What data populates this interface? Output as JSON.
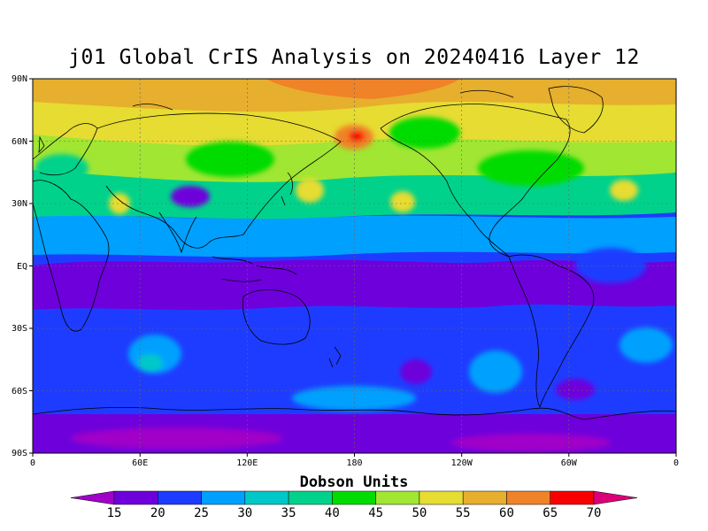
{
  "title": "j01 Global CrIS Analysis on 20240416 Layer 12",
  "map": {
    "lat_labels": [
      "90N",
      "60N",
      "30N",
      "EQ",
      "30S",
      "60S",
      "90S"
    ],
    "lon_labels": [
      "0",
      "60E",
      "120E",
      "180",
      "120W",
      "60W",
      "0"
    ],
    "grid": "dashed"
  },
  "colorbar": {
    "title": "Dobson Units",
    "labels": [
      "15",
      "20",
      "25",
      "30",
      "35",
      "40",
      "45",
      "50",
      "55",
      "60",
      "65",
      "70"
    ],
    "colors": [
      "#a000c8",
      "#6e00dc",
      "#1e3cff",
      "#00a0ff",
      "#00c8c8",
      "#00d28c",
      "#00dc00",
      "#a0e632",
      "#e6dc32",
      "#e6af2d",
      "#f08228",
      "#fa0000",
      "#dc0078"
    ]
  },
  "colors": {
    "land_outline": "#000000",
    "low_ozone": "#6e00dc",
    "high_ozone": "#f08228"
  }
}
